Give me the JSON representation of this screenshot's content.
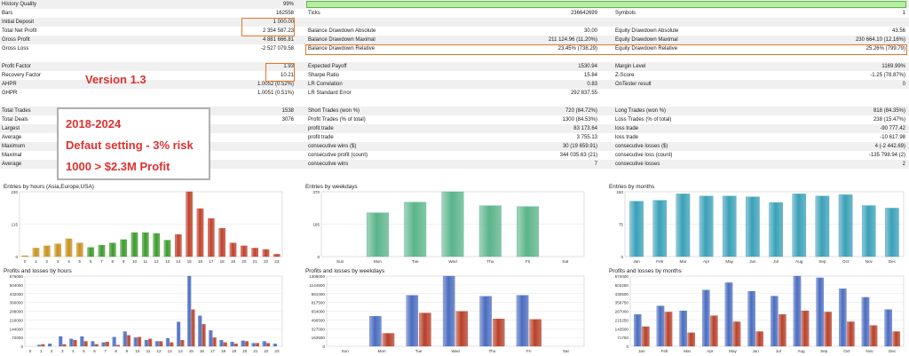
{
  "report": {
    "left_rows": [
      {
        "label": "History Quality",
        "value": "99%"
      },
      {
        "label": "Bars",
        "value": "162558"
      },
      {
        "label": "Initial Deposit",
        "value": "1 000.00"
      },
      {
        "label": "Total Net Profit",
        "value": "2 354 587.23"
      },
      {
        "label": "Gross Profit",
        "value": "4 881 666.81"
      },
      {
        "label": "Gross Loss",
        "value": "-2 527 079.58"
      },
      {
        "label": "",
        "value": ""
      },
      {
        "label": "Profit Factor",
        "value": "1.93"
      },
      {
        "label": "Recovery Factor",
        "value": "10.21"
      },
      {
        "label": "AHPR",
        "value": "1.0052 (0.52%)"
      },
      {
        "label": "GHPR",
        "value": "1.0051 (0.51%)"
      },
      {
        "label": "",
        "value": ""
      },
      {
        "label": "Total Trades",
        "value": "1538"
      },
      {
        "label": "Total Deals",
        "value": "3076"
      },
      {
        "label": "Largest",
        "value": ""
      },
      {
        "label": "Average",
        "value": ""
      },
      {
        "label": "Maximum",
        "value": ""
      },
      {
        "label": "Maximal",
        "value": ""
      },
      {
        "label": "Average",
        "value": ""
      }
    ],
    "mid_rows": [
      {
        "label": "",
        "value": ""
      },
      {
        "label": "Ticks",
        "value": "236642699"
      },
      {
        "label": "",
        "value": ""
      },
      {
        "label": "Balance Drawdown Absolute",
        "value": "30.00"
      },
      {
        "label": "Balance Drawdown Maximal",
        "value": "211 124.96 (11.20%)"
      },
      {
        "label": "Balance Drawdown Relative",
        "value": "23.45% (738.29)"
      },
      {
        "label": "",
        "value": ""
      },
      {
        "label": "Expected Payoff",
        "value": "1530.94"
      },
      {
        "label": "Sharpe Ratio",
        "value": "15.84"
      },
      {
        "label": "LR Correlation",
        "value": "0.83"
      },
      {
        "label": "LR Standard Error",
        "value": "292 837.55"
      },
      {
        "label": "",
        "value": ""
      },
      {
        "label": "Short Trades (won %)",
        "value": "720 (84.72%)"
      },
      {
        "label": "Profit Trades (% of total)",
        "value": "1300 (84.53%)"
      },
      {
        "label": "profit trade",
        "value": "83 173.64"
      },
      {
        "label": "profit trade",
        "value": "3 755.13"
      },
      {
        "label": "consecutive wins ($)",
        "value": "30 (19 659.91)"
      },
      {
        "label": "consecutive profit (count)",
        "value": "344 035.63 (21)"
      },
      {
        "label": "consecutive wins",
        "value": "7"
      }
    ],
    "right_rows": [
      {
        "label": "",
        "value": ""
      },
      {
        "label": "Symbols",
        "value": "1"
      },
      {
        "label": "",
        "value": ""
      },
      {
        "label": "Equity Drawdown Absolute",
        "value": "43.56"
      },
      {
        "label": "Equity Drawdown Maximal",
        "value": "230 664.10 (12.16%)"
      },
      {
        "label": "Equity Drawdown Relative",
        "value": "25.26% (799.79)"
      },
      {
        "label": "",
        "value": ""
      },
      {
        "label": "Margin Level",
        "value": "1169.99%"
      },
      {
        "label": "Z-Score",
        "value": "-1.25 (78.87%)"
      },
      {
        "label": "OnTester result",
        "value": "0"
      },
      {
        "label": "",
        "value": ""
      },
      {
        "label": "",
        "value": ""
      },
      {
        "label": "Long Trades (won %)",
        "value": "818 (84.35%)"
      },
      {
        "label": "Loss Trades (% of total)",
        "value": "238 (15.47%)"
      },
      {
        "label": "loss trade",
        "value": "-90 777.42"
      },
      {
        "label": "loss trade",
        "value": "-10 617.98"
      },
      {
        "label": "consecutive losses ($)",
        "value": "4 (-2 442.69)"
      },
      {
        "label": "consecutive loss (count)",
        "value": "-135 798.94 (2)"
      },
      {
        "label": "consecutive losses",
        "value": "2"
      }
    ],
    "history_quality_bar_fraction": 0.99
  },
  "annotations": {
    "version": "Version 1.3",
    "promo_lines": [
      "2018-2024",
      "Defaut setting - 3% risk",
      "1000 > $2.3M Profit"
    ]
  },
  "colors": {
    "highlight": "#e8752a",
    "annotation_text": "#e03030",
    "hours_early": "#c8901c",
    "hours_mid": "#3a9a2a",
    "hours_late": "#c0402a",
    "weekdays": "#5ab48a",
    "months": "#3aa0b8",
    "profit": "#4a6cc0",
    "loss": "#b8402a"
  },
  "chart_data": [
    {
      "id": "entries-hours",
      "type": "bar",
      "title": "Entries by hours (Asia,Europe,USA)",
      "categories": [
        "0",
        "1",
        "2",
        "3",
        "4",
        "5",
        "6",
        "7",
        "8",
        "9",
        "10",
        "11",
        "12",
        "13",
        "14",
        "15",
        "16",
        "17",
        "18",
        "19",
        "20",
        "21",
        "22",
        "23"
      ],
      "yticks": [
        "230",
        "115",
        "0"
      ],
      "ylim": [
        0,
        230
      ],
      "values": [
        3,
        30,
        38,
        45,
        63,
        48,
        32,
        40,
        48,
        60,
        85,
        85,
        82,
        58,
        78,
        230,
        170,
        135,
        100,
        48,
        38,
        30,
        25,
        8
      ],
      "color_groups": [
        {
          "from": 0,
          "to": 5,
          "color_key": "hours_early"
        },
        {
          "from": 6,
          "to": 13,
          "color_key": "hours_mid"
        },
        {
          "from": 14,
          "to": 23,
          "color_key": "hours_late"
        }
      ]
    },
    {
      "id": "entries-weekdays",
      "type": "bar",
      "title": "Entries by weekdays",
      "categories": [
        "Sun",
        "Mon",
        "Tue",
        "Wed",
        "Thu",
        "Fri",
        "Sat"
      ],
      "yticks": [
        "370",
        "185",
        "0"
      ],
      "ylim": [
        0,
        370
      ],
      "values": [
        0,
        250,
        310,
        370,
        290,
        285,
        0
      ],
      "color_key": "weekdays"
    },
    {
      "id": "entries-months",
      "type": "bar",
      "title": "Entries by months",
      "categories": [
        "Jan",
        "Feb",
        "Mar",
        "Apr",
        "May",
        "Jun",
        "Jul",
        "Aug",
        "Sep",
        "Oct",
        "Nov",
        "Dec"
      ],
      "yticks": [
        "150",
        "75",
        "0"
      ],
      "ylim": [
        0,
        150
      ],
      "values": [
        128,
        130,
        145,
        140,
        140,
        138,
        125,
        145,
        140,
        143,
        118,
        112
      ],
      "color_key": "months"
    },
    {
      "id": "pl-hours",
      "type": "bar",
      "title": "Profits and losses by hours",
      "categories": [
        "0",
        "1",
        "2",
        "3",
        "4",
        "5",
        "6",
        "7",
        "8",
        "9",
        "10",
        "11",
        "12",
        "13",
        "14",
        "15",
        "16",
        "17",
        "18",
        "19",
        "20",
        "21",
        "22",
        "23"
      ],
      "yticks": [
        "576000",
        "504000",
        "432000",
        "360000",
        "288000",
        "216000",
        "144000",
        "72000",
        "0"
      ],
      "ylim": [
        0,
        576000
      ],
      "series": [
        {
          "name": "",
          "color_key": "profit",
          "values": [
            0,
            10000,
            20000,
            80000,
            60000,
            80000,
            40000,
            30000,
            75000,
            120000,
            70000,
            50000,
            40000,
            65000,
            200000,
            576000,
            250000,
            130000,
            50000,
            35000,
            45000,
            25000,
            40000,
            20000
          ]
        },
        {
          "name": "",
          "color_key": "loss",
          "values": [
            0,
            15000,
            0,
            15000,
            50000,
            40000,
            15000,
            35000,
            10000,
            90000,
            75000,
            60000,
            40000,
            30000,
            50000,
            300000,
            180000,
            70000,
            30000,
            20000,
            40000,
            25000,
            25000,
            0
          ]
        }
      ]
    },
    {
      "id": "pl-weekdays",
      "type": "bar",
      "title": "Profits and losses by weekdays",
      "categories": [
        "Sun",
        "Mon",
        "Tue",
        "Wed",
        "Thu",
        "Fri",
        "Sat"
      ],
      "yticks": [
        "1308000",
        "1144500",
        "981000",
        "817500",
        "654000",
        "490500",
        "327000",
        "163500",
        "0"
      ],
      "ylim": [
        0,
        1308000
      ],
      "series": [
        {
          "name": "",
          "color_key": "profit",
          "values": [
            0,
            560000,
            950000,
            1308000,
            930000,
            950000,
            0
          ]
        },
        {
          "name": "",
          "color_key": "loss",
          "values": [
            0,
            240000,
            620000,
            650000,
            510000,
            500000,
            0
          ]
        }
      ]
    },
    {
      "id": "pl-months",
      "type": "bar",
      "title": "Profits and losses by months",
      "categories": [
        "Jan",
        "Feb",
        "Mar",
        "Apr",
        "May",
        "Jun",
        "Jul",
        "Aug",
        "Sep",
        "Oct",
        "Nov",
        "Dec"
      ],
      "yticks": [
        "574000",
        "502250",
        "430500",
        "358750",
        "287000",
        "215250",
        "143500",
        "71750",
        "0"
      ],
      "ylim": [
        0,
        574000
      ],
      "series": [
        {
          "name": "",
          "color_key": "profit",
          "values": [
            260000,
            330000,
            290000,
            460000,
            520000,
            450000,
            410000,
            574000,
            560000,
            470000,
            400000,
            300000
          ]
        },
        {
          "name": "",
          "color_key": "loss",
          "values": [
            160000,
            280000,
            110000,
            250000,
            200000,
            120000,
            260000,
            290000,
            280000,
            200000,
            170000,
            120000
          ]
        }
      ]
    }
  ]
}
